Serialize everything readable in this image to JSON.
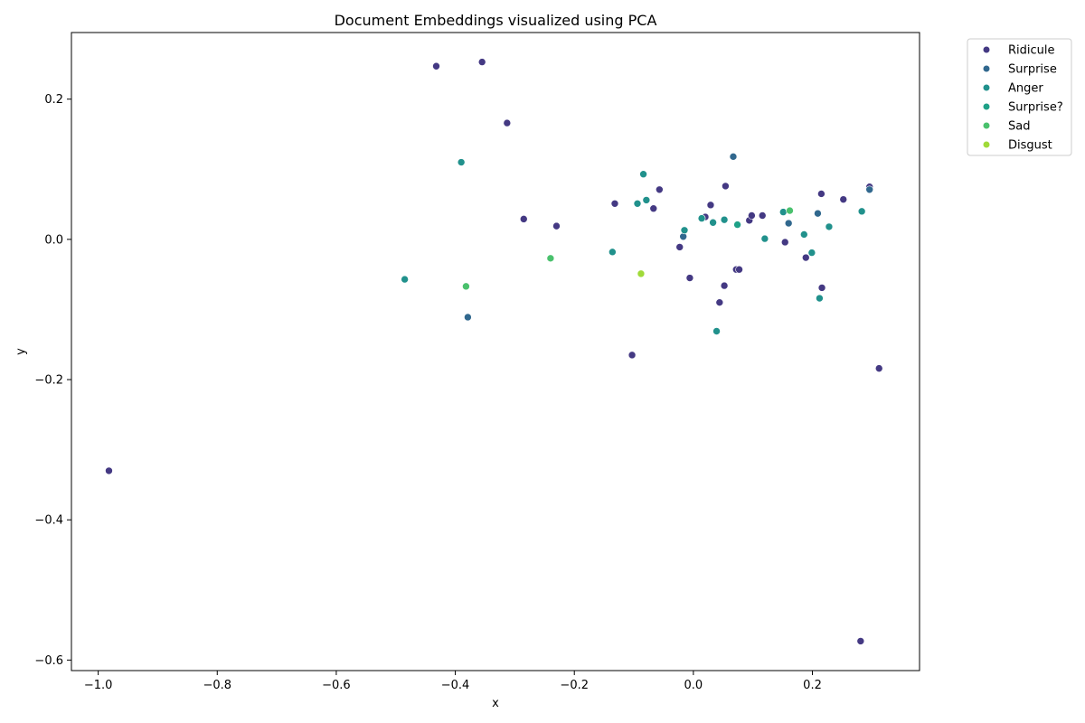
{
  "chart_data": {
    "type": "scatter",
    "title": "Document Embeddings visualized using PCA",
    "xlabel": "x",
    "ylabel": "y",
    "xlim": [
      -1.045,
      0.38
    ],
    "ylim": [
      -0.615,
      0.295
    ],
    "xticks": [
      -1.0,
      -0.8,
      -0.6,
      -0.4,
      -0.2,
      0.0,
      0.2
    ],
    "yticks": [
      -0.6,
      -0.4,
      -0.2,
      0.0,
      0.2
    ],
    "xtick_labels": [
      "−1.0",
      "−0.8",
      "−0.6",
      "−0.4",
      "−0.2",
      "0.0",
      "0.2"
    ],
    "ytick_labels": [
      "−0.6",
      "−0.4",
      "−0.2",
      "0.0",
      "0.2"
    ],
    "grid": false,
    "legend_position": "outside-top-right",
    "series": [
      {
        "name": "Ridicule",
        "color": "#443983",
        "points": [
          [
            -0.432,
            0.247
          ],
          [
            -0.355,
            0.253
          ],
          [
            -0.313,
            0.166
          ],
          [
            -0.285,
            0.029
          ],
          [
            -0.23,
            0.019
          ],
          [
            -0.132,
            0.051
          ],
          [
            -0.067,
            0.044
          ],
          [
            -0.057,
            0.071
          ],
          [
            -0.023,
            -0.011
          ],
          [
            -0.006,
            -0.055
          ],
          [
            0.02,
            0.032
          ],
          [
            0.029,
            0.049
          ],
          [
            0.044,
            -0.09
          ],
          [
            0.052,
            -0.066
          ],
          [
            0.054,
            0.076
          ],
          [
            0.072,
            -0.043
          ],
          [
            0.077,
            -0.043
          ],
          [
            0.094,
            0.027
          ],
          [
            0.098,
            0.034
          ],
          [
            0.116,
            0.034
          ],
          [
            0.154,
            -0.004
          ],
          [
            0.189,
            -0.026
          ],
          [
            0.215,
            0.065
          ],
          [
            0.216,
            -0.069
          ],
          [
            0.252,
            0.057
          ],
          [
            0.296,
            0.075
          ],
          [
            0.312,
            -0.184
          ],
          [
            -0.103,
            -0.165
          ],
          [
            -0.982,
            -0.33
          ],
          [
            0.281,
            -0.573
          ]
        ]
      },
      {
        "name": "Surprise",
        "color": "#31688e",
        "points": [
          [
            0.067,
            0.118
          ],
          [
            -0.379,
            -0.111
          ],
          [
            -0.017,
            0.004
          ],
          [
            0.16,
            0.023
          ],
          [
            0.209,
            0.037
          ],
          [
            0.296,
            0.071
          ]
        ]
      },
      {
        "name": "Anger",
        "color": "#21918c",
        "points": [
          [
            -0.39,
            0.11
          ],
          [
            -0.485,
            -0.057
          ],
          [
            -0.136,
            -0.018
          ],
          [
            -0.094,
            0.051
          ],
          [
            -0.084,
            0.093
          ],
          [
            -0.079,
            0.056
          ],
          [
            -0.015,
            0.013
          ],
          [
            0.014,
            0.03
          ],
          [
            0.033,
            0.024
          ],
          [
            0.039,
            -0.131
          ],
          [
            0.052,
            0.028
          ],
          [
            0.12,
            0.001
          ],
          [
            0.151,
            0.039
          ],
          [
            0.186,
            0.007
          ],
          [
            0.199,
            -0.019
          ],
          [
            0.212,
            -0.084
          ],
          [
            0.228,
            0.018
          ],
          [
            0.283,
            0.04
          ]
        ]
      },
      {
        "name": "Surprise?",
        "color": "#1fa187",
        "points": [
          [
            0.074,
            0.021
          ]
        ]
      },
      {
        "name": "Sad",
        "color": "#4ac16d",
        "points": [
          [
            -0.24,
            -0.027
          ],
          [
            -0.382,
            -0.067
          ],
          [
            0.162,
            0.041
          ]
        ]
      },
      {
        "name": "Disgust",
        "color": "#a0da39",
        "points": [
          [
            -0.088,
            -0.049
          ]
        ]
      }
    ]
  }
}
